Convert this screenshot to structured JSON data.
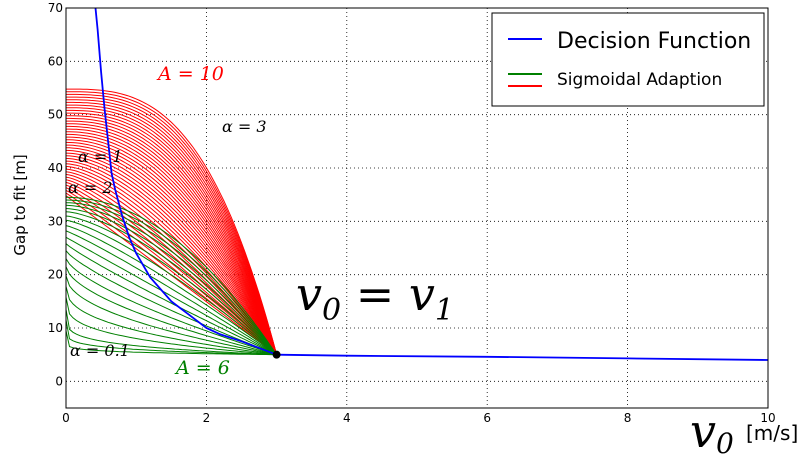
{
  "chart_data": {
    "type": "line",
    "title": "",
    "xlabel_symbol": "v_0",
    "xlabel_unit": "[m/s]",
    "ylabel": "Gap to fit [m]",
    "xlim": [
      0,
      10
    ],
    "ylim": [
      -5,
      70
    ],
    "x_ticks": [
      "0",
      "2",
      "4",
      "6",
      "8",
      "10"
    ],
    "y_ticks": [
      "0",
      "10",
      "20",
      "30",
      "40",
      "50",
      "60",
      "70"
    ],
    "grid": true,
    "legend_position": "top-right",
    "legend": [
      "Decision Function",
      "Sigmoidal Adaption"
    ],
    "point_v1": {
      "x": 3.0,
      "y": 5.0
    },
    "series": [
      {
        "name": "Decision Function",
        "color": "#0000ff",
        "x": [
          0.42,
          0.45,
          0.5,
          0.55,
          0.6,
          0.65,
          0.7,
          0.8,
          0.9,
          1.0,
          1.2,
          1.5,
          1.8,
          2.0,
          2.2,
          2.5,
          2.8,
          3.0,
          4.0,
          6.0,
          8.0,
          10.0
        ],
        "y": [
          70,
          66,
          58,
          51,
          45,
          39,
          36,
          31,
          27,
          24,
          19.5,
          15,
          12,
          10,
          8.8,
          7.5,
          6,
          5,
          4.8,
          4.6,
          4.3,
          4.0
        ]
      },
      {
        "name": "Sigmoidal Adaption (A = 10)",
        "color": "#ff0000",
        "parameter": "A",
        "A": 10,
        "x_start": 0,
        "x_end": 3.0,
        "y_end": 5.0,
        "start_values_y": [
          54.8,
          54.3,
          53.8,
          53.3,
          52.8,
          52.3,
          51.8,
          51.3,
          50.8,
          50.3,
          49.8,
          49.3,
          48.8,
          48.3,
          47.8,
          47.3,
          46.8,
          46.3,
          45.8,
          45.3,
          44.8,
          44.3,
          43.8,
          43.3,
          42.8,
          42.3,
          41.8,
          41.3,
          40.8,
          40.3,
          39.8,
          39.3,
          38.8,
          38.3,
          37.8,
          37.3,
          36.8,
          36.3,
          35.8,
          35.3,
          34.8
        ],
        "alpha": [
          3.0,
          2.95,
          2.9,
          2.85,
          2.8,
          2.75,
          2.7,
          2.65,
          2.6,
          2.55,
          2.5,
          2.45,
          2.4,
          2.35,
          2.3,
          2.25,
          2.2,
          2.15,
          2.1,
          2.05,
          2.0,
          1.95,
          1.9,
          1.85,
          1.8,
          1.75,
          1.7,
          1.65,
          1.6,
          1.55,
          1.5,
          1.45,
          1.4,
          1.35,
          1.3,
          1.25,
          1.2,
          1.15,
          1.1,
          1.05,
          1.0
        ]
      },
      {
        "name": "Sigmoidal Adaption (A = 6)",
        "color": "#008000",
        "parameter": "A",
        "A": 6,
        "x_start": 0,
        "x_end": 3.0,
        "y_end": 5.0,
        "start_values_y": [
          34.5,
          34.0,
          33.5,
          33.0,
          32.4,
          31.8,
          31.0,
          30.2,
          29.2,
          28.2,
          27.0,
          25.8,
          24.5,
          23.0,
          21.5,
          19.8,
          17.8,
          15.8,
          13.5,
          11.5,
          9.5
        ],
        "alpha": [
          2.0,
          1.9,
          1.8,
          1.7,
          1.6,
          1.5,
          1.4,
          1.3,
          1.2,
          1.1,
          1.0,
          0.9,
          0.8,
          0.7,
          0.6,
          0.5,
          0.4,
          0.3,
          0.2,
          0.15,
          0.1
        ]
      }
    ],
    "annotations": {
      "A10": "A = 10",
      "A6": "A = 6",
      "alpha3": "α = 3",
      "alpha1": "α = 1",
      "alpha2": "α = 2",
      "alpha01": "α = 0.1",
      "v0v1": "v0 = v1"
    }
  }
}
